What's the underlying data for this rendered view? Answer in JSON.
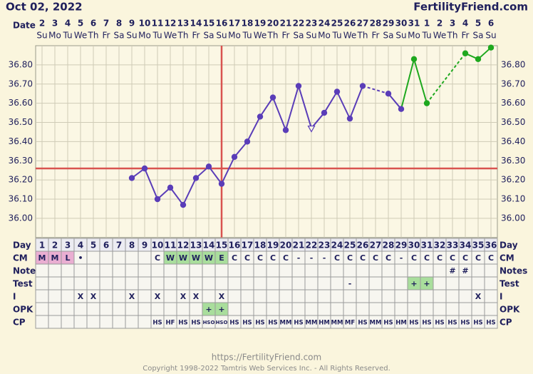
{
  "header": {
    "title": "Oct 02, 2022",
    "site": "FertilityFriend.com"
  },
  "calendar": {
    "label": "Date",
    "dates": [
      "2",
      "3",
      "4",
      "5",
      "6",
      "7",
      "8",
      "9",
      "10",
      "11",
      "12",
      "13",
      "14",
      "15",
      "16",
      "17",
      "18",
      "19",
      "20",
      "21",
      "22",
      "23",
      "24",
      "25",
      "26",
      "27",
      "28",
      "29",
      "30",
      "31",
      "1",
      "2",
      "3",
      "4",
      "5",
      "6"
    ],
    "weekdays": [
      "Su",
      "Mo",
      "Tu",
      "We",
      "Th",
      "Fr",
      "Sa",
      "Su",
      "Mo",
      "Tu",
      "We",
      "Th",
      "Fr",
      "Sa",
      "Su",
      "Mo",
      "Tu",
      "We",
      "Th",
      "Fr",
      "Sa",
      "Su",
      "Mo",
      "Tu",
      "We",
      "Th",
      "Fr",
      "Sa",
      "Su",
      "Mo",
      "Tu",
      "We",
      "Th",
      "Fr",
      "Sa",
      "Su"
    ]
  },
  "chart_data": {
    "type": "line",
    "x": [
      1,
      2,
      3,
      4,
      5,
      6,
      7,
      8,
      9,
      10,
      11,
      12,
      13,
      14,
      15,
      16,
      17,
      18,
      19,
      20,
      21,
      22,
      23,
      24,
      25,
      26,
      27,
      28,
      29,
      30,
      31,
      32,
      33,
      34,
      35,
      36
    ],
    "xlim": [
      0.5,
      36.5
    ],
    "ylim": [
      35.9,
      36.9
    ],
    "yticks": [
      {
        "value": 36.0,
        "label": "36.00"
      },
      {
        "value": 36.1,
        "label": "36.10"
      },
      {
        "value": 36.2,
        "label": "36.20"
      },
      {
        "value": 36.3,
        "label": "36.30"
      },
      {
        "value": 36.4,
        "label": "36.40"
      },
      {
        "value": 36.5,
        "label": "36.50"
      },
      {
        "value": 36.6,
        "label": "36.60"
      },
      {
        "value": 36.7,
        "label": "36.70"
      },
      {
        "value": 36.8,
        "label": "36.80"
      }
    ],
    "grid": true,
    "coverline": 36.26,
    "vline": 15,
    "line_color": "#d9534f",
    "series": [
      {
        "color": "#5a3db8",
        "values": [
          null,
          null,
          null,
          null,
          null,
          null,
          null,
          36.21,
          36.26,
          36.1,
          36.16,
          36.07,
          36.21,
          36.27,
          36.18,
          36.32,
          36.4,
          36.53,
          36.63,
          36.46,
          36.69,
          36.47,
          36.55,
          36.66,
          36.52,
          36.69,
          null,
          36.65,
          36.57,
          null,
          null,
          null,
          null,
          null,
          null,
          null
        ],
        "markers": [
          null,
          null,
          null,
          null,
          null,
          null,
          null,
          "circle",
          "circle",
          "circle",
          "circle",
          "circle",
          "circle",
          "circle",
          "circle",
          "circle",
          "circle",
          "circle",
          "circle",
          "circle",
          "circle",
          "triangle-open",
          "circle",
          "circle",
          "circle",
          "circle",
          null,
          "circle",
          "circle",
          null,
          null,
          null,
          null,
          null,
          null,
          null
        ]
      },
      {
        "color": "#1ea81e",
        "values": [
          null,
          null,
          null,
          null,
          null,
          null,
          null,
          null,
          null,
          null,
          null,
          null,
          null,
          null,
          null,
          null,
          null,
          null,
          null,
          null,
          null,
          null,
          null,
          null,
          null,
          null,
          null,
          null,
          null,
          36.83,
          36.6,
          null,
          null,
          36.86,
          36.83,
          36.89
        ]
      }
    ]
  },
  "table": {
    "day_label": "Day",
    "rows": [
      {
        "label": "CM",
        "cells": [
          "M",
          "M",
          "L",
          "•",
          null,
          null,
          null,
          null,
          null,
          "C",
          "W",
          "W",
          "W",
          "W",
          "E",
          "C",
          "C",
          "C",
          "C",
          "C",
          "-",
          "-",
          "-",
          "C",
          "C",
          "C",
          "C",
          "C",
          "-",
          "C",
          "C",
          "C",
          "C",
          "C",
          "C",
          "C"
        ],
        "cell_colors": {
          "M": "#eaaed2",
          "L": "#eaaed2",
          "W": "#a9de9c",
          "E": "#a9de9c"
        }
      },
      {
        "label": "Notes",
        "cells": [
          null,
          null,
          null,
          null,
          null,
          null,
          null,
          null,
          null,
          null,
          null,
          null,
          null,
          null,
          null,
          null,
          null,
          null,
          null,
          null,
          null,
          null,
          null,
          null,
          null,
          null,
          null,
          null,
          null,
          null,
          null,
          null,
          "#",
          "#",
          null,
          null
        ]
      },
      {
        "label": "Test",
        "cells": [
          null,
          null,
          null,
          null,
          null,
          null,
          null,
          null,
          null,
          null,
          null,
          null,
          null,
          null,
          null,
          null,
          null,
          null,
          null,
          null,
          null,
          null,
          null,
          null,
          "-",
          null,
          null,
          null,
          null,
          "+",
          "+",
          null,
          null,
          null,
          null,
          null
        ],
        "cell_colors": {
          "+": "#a9de9c"
        }
      },
      {
        "label": "I",
        "cells": [
          null,
          null,
          null,
          "X",
          "X",
          null,
          null,
          "X",
          null,
          "X",
          null,
          "X",
          "X",
          null,
          "X",
          null,
          null,
          null,
          null,
          null,
          null,
          null,
          null,
          null,
          null,
          null,
          null,
          null,
          null,
          null,
          null,
          null,
          null,
          null,
          "X",
          null
        ]
      },
      {
        "label": "OPK",
        "cells": [
          null,
          null,
          null,
          null,
          null,
          null,
          null,
          null,
          null,
          null,
          null,
          null,
          null,
          "+",
          "+",
          null,
          null,
          null,
          null,
          null,
          null,
          null,
          null,
          null,
          null,
          null,
          null,
          null,
          null,
          null,
          null,
          null,
          null,
          null,
          null,
          null
        ],
        "cell_colors": {
          "+": "#a9de9c"
        }
      },
      {
        "label": "CP",
        "cells": [
          null,
          null,
          null,
          null,
          null,
          null,
          null,
          null,
          null,
          "HS",
          "HF",
          "HS",
          "HS",
          "HSO",
          "HSO",
          "HS",
          "HS",
          "HS",
          "HS",
          "MM",
          "HS",
          "MM",
          "HM",
          "MM",
          "MF",
          "HS",
          "MM",
          "HS",
          "HM",
          "HS",
          "HS",
          "HS",
          "HS",
          "HS",
          "HS",
          "HS"
        ]
      }
    ]
  },
  "footer": {
    "url": "https://FertilityFriend.com",
    "copyright": "Copyright 1998-2022 Tamtris Web Services Inc. - All Rights Reserved."
  }
}
